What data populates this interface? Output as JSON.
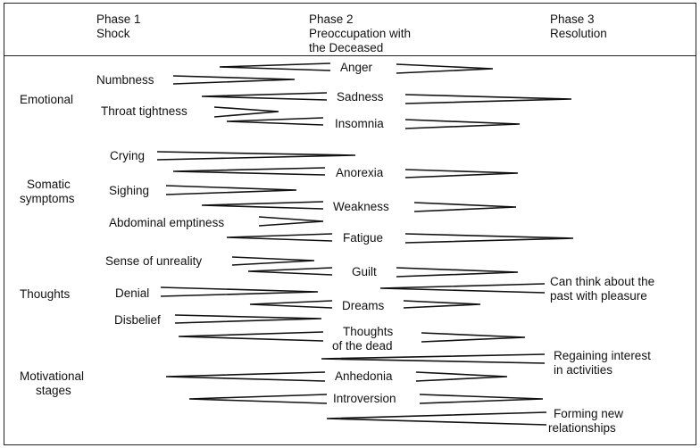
{
  "header": {
    "phase1": {
      "line1": "Phase 1",
      "line2": "Shock"
    },
    "phase2": {
      "line1": "Phase 2",
      "line2": "Preoccupation with",
      "line3": "the Deceased"
    },
    "phase3": {
      "line1": "Phase 3",
      "line2": "Resolution"
    }
  },
  "categories": {
    "emotional": "Emotional",
    "somatic1": "Somatic",
    "somatic2": "symptoms",
    "thoughts": "Thoughts",
    "motivational1": "Motivational",
    "motivational2": "stages"
  },
  "items": {
    "anger": "Anger",
    "numbness": "Numbness",
    "sadness": "Sadness",
    "throat_tightness": "Throat tightness",
    "insomnia": "Insomnia",
    "crying": "Crying",
    "anorexia": "Anorexia",
    "sighing": "Sighing",
    "weakness": "Weakness",
    "abdominal_emptiness": "Abdominal emptiness",
    "fatigue": "Fatigue",
    "sense_of_unreality": "Sense of unreality",
    "guilt": "Guilt",
    "can_think_1": "Can think about the",
    "can_think_2": "past with pleasure",
    "denial": "Denial",
    "dreams": "Dreams",
    "disbelief": "Disbelief",
    "thoughts_dead_1": "Thoughts",
    "thoughts_dead_2": "of the dead",
    "regaining_1": "Regaining interest",
    "regaining_2": "in activities",
    "anhedonia": "Anhedonia",
    "introversion": "Introversion",
    "forming_1": "Forming new",
    "forming_2": "relationships"
  }
}
